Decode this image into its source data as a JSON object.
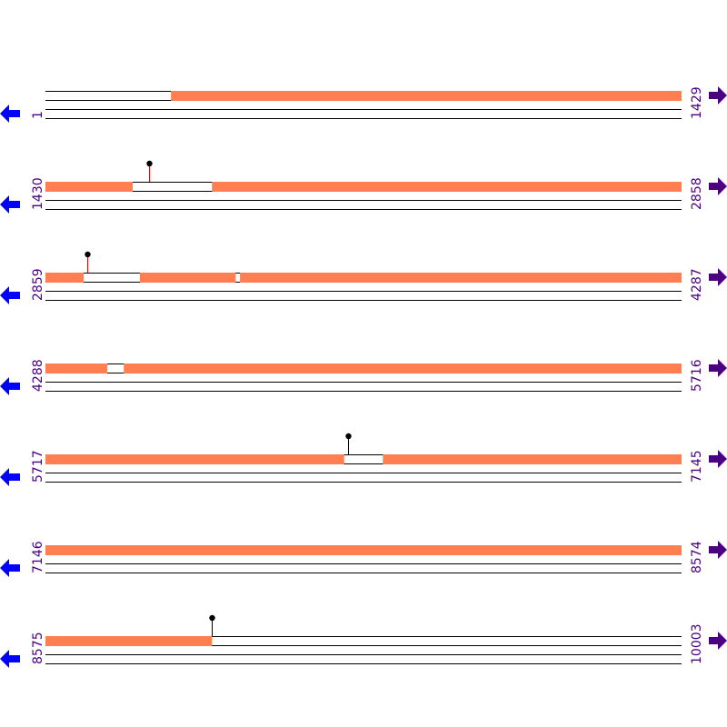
{
  "colors": {
    "segment": "#ff7f50",
    "line": "#000000",
    "left_arrow": "#0000ff",
    "right_arrow": "#4b0082",
    "label": "#4b0082",
    "marker_red": "#ff0000",
    "marker_black": "#000000"
  },
  "icons": {
    "left": "arrow-left-icon",
    "right": "arrow-right-icon",
    "marker": "lollipop-marker-icon"
  },
  "rows": [
    {
      "start": "1",
      "end": "1429",
      "s": 1,
      "e": 1429,
      "segments": [
        [
          283,
          1429
        ]
      ],
      "markers": []
    },
    {
      "start": "1430",
      "end": "2858",
      "s": 1430,
      "e": 2858,
      "segments": [
        [
          1430,
          1625
        ],
        [
          1804,
          2858
        ]
      ],
      "markers": [
        {
          "pos": 1663,
          "color": "red"
        }
      ]
    },
    {
      "start": "2859",
      "end": "4287",
      "s": 2859,
      "e": 4287,
      "segments": [
        [
          2859,
          2944
        ],
        [
          3071,
          3285
        ],
        [
          3296,
          4287
        ]
      ],
      "markers": [
        {
          "pos": 2953,
          "color": "red"
        }
      ]
    },
    {
      "start": "4288",
      "end": "5716",
      "s": 4288,
      "e": 5716,
      "segments": [
        [
          4288,
          4426
        ],
        [
          4464,
          5716
        ]
      ],
      "markers": []
    },
    {
      "start": "5717",
      "end": "7145",
      "s": 5717,
      "e": 7145,
      "segments": [
        [
          5717,
          6387
        ],
        [
          6475,
          7145
        ]
      ],
      "markers": [
        {
          "pos": 6397,
          "color": "black"
        }
      ]
    },
    {
      "start": "7146",
      "end": "8574",
      "s": 7146,
      "e": 8574,
      "segments": [
        [
          7146,
          8574
        ]
      ],
      "markers": []
    },
    {
      "start": "8575",
      "end": "10003",
      "s": 8575,
      "e": 10003,
      "segments": [
        [
          8575,
          8948
        ]
      ],
      "markers": [
        {
          "pos": 8949,
          "color": "black"
        }
      ]
    }
  ]
}
